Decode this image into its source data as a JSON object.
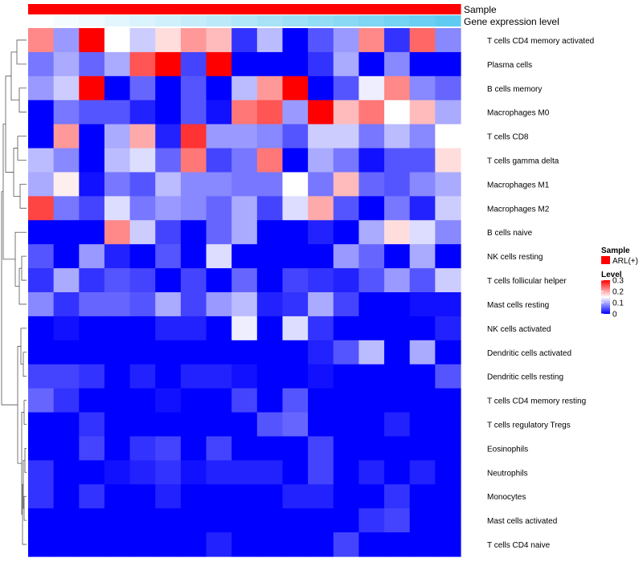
{
  "chart_data": {
    "type": "heatmap",
    "title": "",
    "annotation_tracks": [
      {
        "name": "Sample",
        "levels": [
          "ARL(+)"
        ],
        "colors": [
          "#ff0000"
        ]
      },
      {
        "name": "Gene expression level",
        "values": [
          0.02,
          0.06,
          0.1,
          0.16,
          0.22,
          0.28,
          0.34,
          0.4,
          0.46,
          0.52,
          0.58,
          0.64,
          0.7,
          0.76,
          0.82,
          0.88,
          0.94
        ],
        "colors": [
          "#ffffff",
          "#56c8f0"
        ]
      }
    ],
    "rows": [
      "T cells CD4 memory activated",
      "Plasma cells",
      "B cells memory",
      "Macrophages M0",
      "T cells CD8",
      "T cells gamma delta",
      "Macrophages M1",
      "Macrophages M2",
      "B cells naive",
      "NK cells resting",
      "T cells follicular helper",
      "Mast cells resting",
      "NK cells activated",
      "Dendritic cells activated",
      "Dendritic cells resting",
      "T cells CD4 memory resting",
      "T cells regulatory  Tregs",
      "Eosinophils",
      "Neutrophils",
      "Monocytes",
      "Mast cells activated",
      "T cells CD4 naive"
    ],
    "n_columns": 17,
    "values": [
      [
        0.22,
        0.09,
        0.3,
        0.15,
        0.12,
        0.17,
        0.21,
        0.19,
        0.03,
        0.11,
        0.0,
        0.05,
        0.09,
        0.22,
        0.03,
        0.24,
        0.08
      ],
      [
        0.07,
        0.1,
        0.06,
        0.1,
        0.25,
        0.3,
        0.04,
        0.3,
        0.0,
        0.0,
        0.0,
        0.03,
        0.1,
        0.0,
        0.08,
        0.0,
        0.0
      ],
      [
        0.09,
        0.12,
        0.3,
        0.0,
        0.06,
        0.0,
        0.05,
        0.0,
        0.11,
        0.21,
        0.3,
        0.0,
        0.05,
        0.14,
        0.22,
        0.08,
        0.06
      ],
      [
        0.0,
        0.07,
        0.05,
        0.05,
        0.02,
        0.0,
        0.05,
        0.01,
        0.23,
        0.25,
        0.09,
        0.3,
        0.19,
        0.23,
        0.15,
        0.19,
        0.1
      ],
      [
        0.0,
        0.21,
        0.0,
        0.1,
        0.2,
        0.02,
        0.27,
        0.09,
        0.09,
        0.08,
        0.05,
        0.12,
        0.12,
        0.07,
        0.11,
        0.08,
        0.15
      ],
      [
        0.11,
        0.08,
        0.0,
        0.11,
        0.13,
        0.06,
        0.23,
        0.04,
        0.07,
        0.23,
        0.0,
        0.1,
        0.07,
        0.01,
        0.05,
        0.05,
        0.17
      ],
      [
        0.1,
        0.16,
        0.01,
        0.07,
        0.05,
        0.11,
        0.08,
        0.08,
        0.07,
        0.07,
        0.15,
        0.07,
        0.19,
        0.06,
        0.05,
        0.08,
        0.1
      ],
      [
        0.26,
        0.07,
        0.04,
        0.13,
        0.07,
        0.09,
        0.08,
        0.06,
        0.1,
        0.04,
        0.13,
        0.2,
        0.05,
        0.0,
        0.07,
        0.02,
        0.12
      ],
      [
        0.0,
        0.0,
        0.0,
        0.22,
        0.12,
        0.04,
        0.0,
        0.06,
        0.1,
        0.0,
        0.0,
        0.02,
        0.0,
        0.1,
        0.17,
        0.13,
        0.08
      ],
      [
        0.05,
        0.0,
        0.09,
        0.02,
        0.0,
        0.05,
        0.0,
        0.13,
        0.0,
        0.0,
        0.0,
        0.0,
        0.09,
        0.06,
        0.0,
        0.1,
        0.0
      ],
      [
        0.03,
        0.1,
        0.03,
        0.05,
        0.04,
        0.0,
        0.04,
        0.0,
        0.06,
        0.0,
        0.04,
        0.03,
        0.02,
        0.05,
        0.09,
        0.05,
        0.12
      ],
      [
        0.08,
        0.03,
        0.06,
        0.06,
        0.05,
        0.1,
        0.04,
        0.09,
        0.11,
        0.02,
        0.03,
        0.1,
        0.04,
        0.0,
        0.0,
        0.01,
        0.01
      ],
      [
        0.0,
        0.01,
        0.0,
        0.0,
        0.0,
        0.02,
        0.02,
        0.0,
        0.14,
        0.0,
        0.13,
        0.03,
        0.0,
        0.0,
        0.0,
        0.0,
        0.02
      ],
      [
        0.0,
        0.0,
        0.0,
        0.0,
        0.0,
        0.0,
        0.0,
        0.0,
        0.0,
        0.0,
        0.0,
        0.02,
        0.05,
        0.11,
        0.0,
        0.1,
        0.0
      ],
      [
        0.04,
        0.04,
        0.03,
        0.0,
        0.02,
        0.0,
        0.02,
        0.02,
        0.01,
        0.0,
        0.0,
        0.01,
        0.0,
        0.0,
        0.0,
        0.0,
        0.05
      ],
      [
        0.06,
        0.03,
        0.0,
        0.0,
        0.0,
        0.01,
        0.0,
        0.0,
        0.04,
        0.0,
        0.05,
        0.0,
        0.0,
        0.0,
        0.0,
        0.0,
        0.0
      ],
      [
        0.0,
        0.0,
        0.03,
        0.0,
        0.0,
        0.0,
        0.0,
        0.0,
        0.0,
        0.05,
        0.06,
        0.0,
        0.0,
        0.0,
        0.02,
        0.0,
        0.0
      ],
      [
        0.0,
        0.0,
        0.04,
        0.0,
        0.03,
        0.04,
        0.0,
        0.04,
        0.0,
        0.0,
        0.0,
        0.04,
        0.0,
        0.0,
        0.0,
        0.0,
        0.0
      ],
      [
        0.03,
        0.0,
        0.0,
        0.01,
        0.02,
        0.03,
        0.01,
        0.02,
        0.02,
        0.02,
        0.0,
        0.04,
        0.0,
        0.02,
        0.0,
        0.02,
        0.0
      ],
      [
        0.03,
        0.0,
        0.03,
        0.0,
        0.0,
        0.02,
        0.0,
        0.0,
        0.0,
        0.0,
        0.02,
        0.02,
        0.0,
        0.0,
        0.03,
        0.0,
        0.0
      ],
      [
        0.0,
        0.0,
        0.0,
        0.0,
        0.0,
        0.0,
        0.0,
        0.0,
        0.0,
        0.0,
        0.0,
        0.0,
        0.0,
        0.03,
        0.04,
        0.0,
        0.0
      ],
      [
        0.0,
        0.0,
        0.0,
        0.0,
        0.0,
        0.0,
        0.0,
        0.02,
        0.0,
        0.0,
        0.0,
        0.0,
        0.04,
        0.0,
        0.0,
        0.0,
        0.0
      ]
    ],
    "color_scale": {
      "title": "Level",
      "range": [
        0,
        0.3
      ],
      "ticks": [
        "0.3",
        "0.2",
        "0.1",
        "0"
      ],
      "tick_values": [
        0.3,
        0.2,
        0.1,
        0
      ],
      "colors": [
        "#0000ff",
        "#ffffff",
        "#ff0000"
      ]
    },
    "legend": {
      "position": "right",
      "sample_title": "Sample",
      "sample_entries": [
        {
          "label": "ARL(+)",
          "color": "#ff0000"
        }
      ]
    },
    "dendrogram": "rows, left side"
  }
}
